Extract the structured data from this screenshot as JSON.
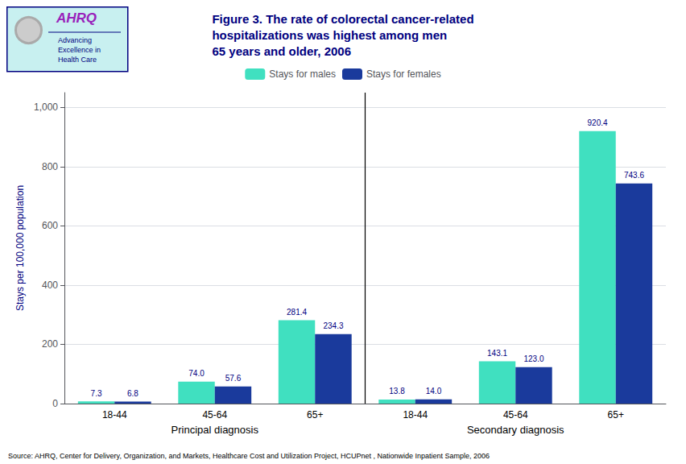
{
  "chart_data": {
    "type": "bar",
    "title": "Figure 3. The rate of colorectal cancer-related\nhospitalizations was highest among men\n65 years and older, 2006",
    "annotations": [
      "AHRQ",
      "Advancing\nExcellence in\nHealth Care"
    ],
    "section_labels": [
      "Principal diagnosis",
      "Secondary diagnosis"
    ],
    "source": "Source: AHRQ, Center for Delivery, Organization, and Markets, Healthcare Cost and Utilization Project, HCUPnet , Nationwide Inpatient Sample, 2006",
    "ylabel": "Stays per 100,000 population",
    "categories": [
      "18-44",
      "45-64",
      "65+",
      "18-44",
      "45-64",
      "65+"
    ],
    "series": [
      {
        "name": "Stays for males",
        "color": "#40E0C0",
        "values": [
          7.3,
          74.0,
          281.4,
          13.8,
          143.1,
          920.4
        ],
        "value_labels": [
          "7.3",
          "74.0",
          "281.4",
          "13.8",
          "143.1",
          "920.4"
        ]
      },
      {
        "name": "Stays for females",
        "color": "#1A3A9C",
        "values": [
          6.8,
          57.6,
          234.3,
          14.0,
          123.0,
          743.6
        ],
        "value_labels": [
          "6.8",
          "57.6",
          "234.3",
          "14.0",
          "123.0",
          "743.6"
        ]
      }
    ],
    "ylim": [
      0,
      1050
    ],
    "yticks": [
      0,
      200,
      400,
      600,
      800,
      {
        "value": 1000,
        "label": "1,000"
      }
    ],
    "grid": true,
    "legend": "top",
    "data_labels": true
  }
}
